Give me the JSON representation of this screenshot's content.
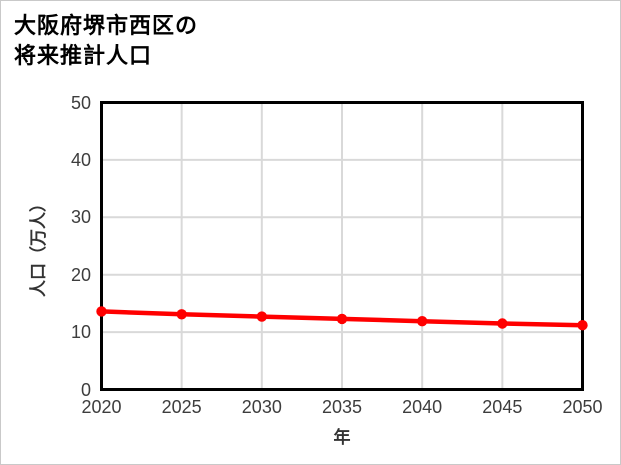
{
  "title": {
    "line1": "大阪府堺市西区の",
    "line2": "将来推計人口"
  },
  "chart_data": {
    "type": "line",
    "title": "大阪府堺市西区の将来推計人口",
    "x": [
      2020,
      2025,
      2030,
      2035,
      2040,
      2045,
      2050
    ],
    "values": [
      13.6,
      13.1,
      12.7,
      12.3,
      11.9,
      11.5,
      11.2
    ],
    "xlabel": "年",
    "ylabel": "人口（万人）",
    "xlim": [
      2020,
      2050
    ],
    "ylim": [
      0,
      50
    ],
    "xticks": [
      2020,
      2025,
      2030,
      2035,
      2040,
      2045,
      2050
    ],
    "yticks": [
      0,
      10,
      20,
      30,
      40,
      50
    ],
    "grid": true,
    "legend": "none",
    "line_color": "#ff0000",
    "marker": "circle"
  },
  "colors": {
    "line": "#ff0000",
    "grid": "#d9d9d9",
    "spine": "#000000",
    "tick_label": "#3d3d3d",
    "axis_label": "#333333",
    "title": "#000000",
    "background": "#ffffff",
    "outer_border": "#c9c9c9"
  }
}
